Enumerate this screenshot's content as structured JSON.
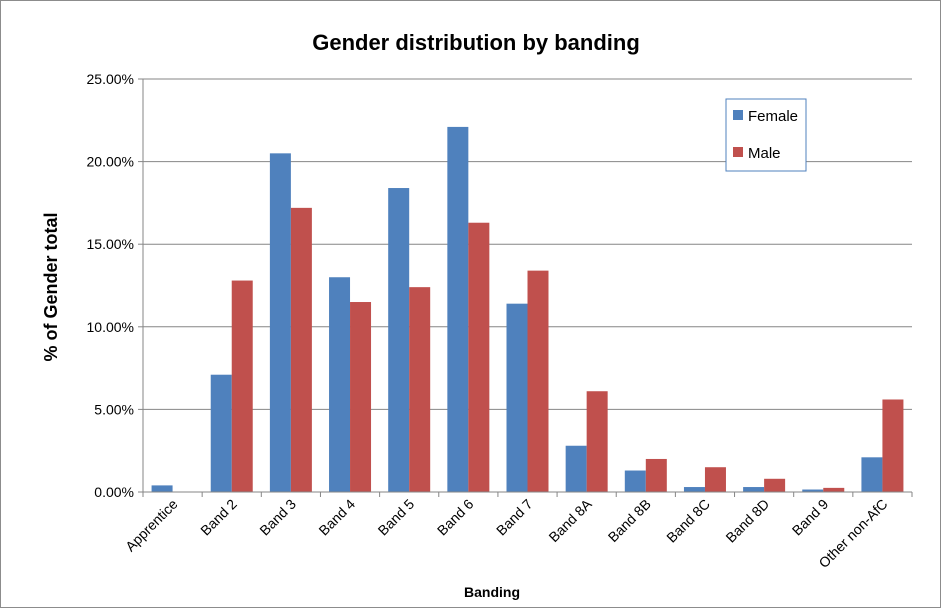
{
  "chart_data": {
    "type": "bar",
    "title": "Gender distribution by banding",
    "xlabel": "Banding",
    "ylabel": "% of Gender total",
    "categories": [
      "Apprentice",
      "Band 2",
      "Band 3",
      "Band 4",
      "Band 5",
      "Band 6",
      "Band 7",
      "Band 8A",
      "Band 8B",
      "Band 8C",
      "Band 8D",
      "Band 9",
      "Other non-AfC"
    ],
    "series": [
      {
        "name": "Female",
        "color": "#4f81bd",
        "values": [
          0.4,
          7.1,
          20.5,
          13.0,
          18.4,
          22.1,
          11.4,
          2.8,
          1.3,
          0.3,
          0.3,
          0.15,
          2.1
        ]
      },
      {
        "name": "Male",
        "color": "#c0504d",
        "values": [
          0.0,
          12.8,
          17.2,
          11.5,
          12.4,
          16.3,
          13.4,
          6.1,
          2.0,
          1.5,
          0.8,
          0.25,
          5.6
        ]
      }
    ],
    "ylim": [
      0,
      25
    ],
    "yticks": [
      0,
      5,
      10,
      15,
      20,
      25
    ],
    "ytick_labels": [
      "0.00%",
      "5.00%",
      "10.00%",
      "15.00%",
      "20.00%",
      "25.00%"
    ],
    "grid": true,
    "legend_position": "top-right"
  }
}
